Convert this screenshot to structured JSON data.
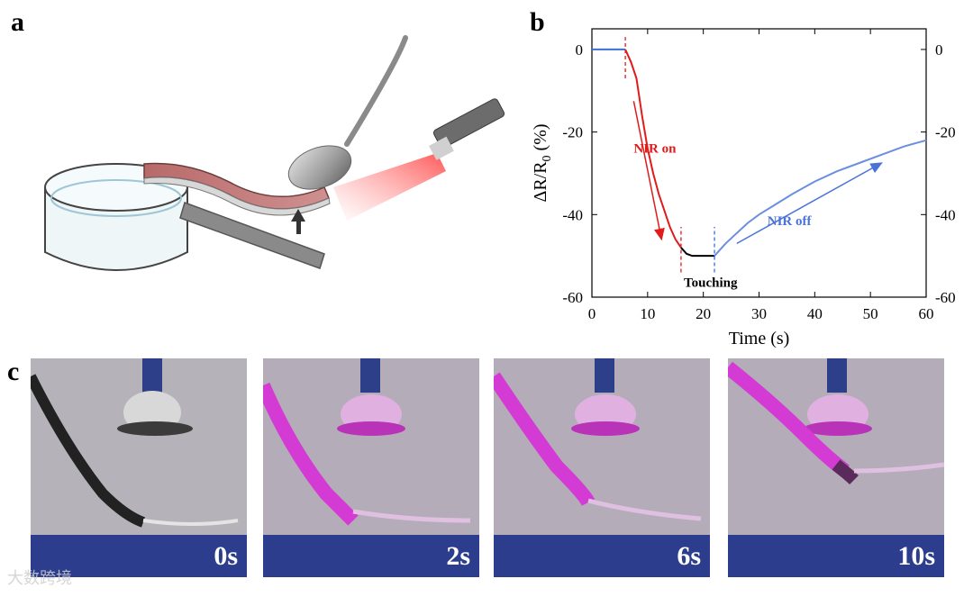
{
  "panels": {
    "a": "a",
    "b": "b",
    "c": "c"
  },
  "chart_data": {
    "type": "line",
    "xlabel": "Time (s)",
    "ylabel_main": "ΔR/R",
    "ylabel_sub": "0",
    "ylabel_unit": " (%)",
    "xlim": [
      0,
      60
    ],
    "ylim": [
      -60,
      5
    ],
    "xticks": [
      0,
      10,
      20,
      30,
      40,
      50,
      60
    ],
    "yticks": [
      0,
      -20,
      -40,
      -60
    ],
    "grid": false,
    "series": [
      {
        "color": "#3b6fd6",
        "x": [
          0,
          6
        ],
        "y": [
          0,
          0
        ]
      },
      {
        "color": "#e01b1b",
        "x": [
          6,
          7,
          8,
          9,
          10,
          11,
          12,
          13,
          14,
          15,
          16
        ],
        "y": [
          0,
          -3,
          -7,
          -16,
          -24,
          -30,
          -35,
          -39,
          -43,
          -46,
          -48
        ]
      },
      {
        "color": "#000000",
        "x": [
          16,
          17,
          18,
          19,
          20,
          21,
          22
        ],
        "y": [
          -48,
          -49.5,
          -50,
          -50,
          -50,
          -50,
          -50
        ]
      },
      {
        "color": "#6a8fe0",
        "x": [
          22,
          24,
          26,
          28,
          30,
          33,
          36,
          40,
          44,
          48,
          52,
          56,
          60
        ],
        "y": [
          -50,
          -47,
          -44.5,
          -42,
          -40,
          -37.5,
          -35,
          -32,
          -29.5,
          -27.5,
          -25.5,
          -23.5,
          -22
        ]
      }
    ],
    "vlines": [
      {
        "x": 6,
        "y": [
          -7,
          3
        ],
        "color": "#e01b1b"
      },
      {
        "x": 16,
        "y": [
          -54,
          -43
        ],
        "color": "#e01b1b"
      },
      {
        "x": 22,
        "y": [
          -54,
          -43
        ],
        "color": "#3b6fd6"
      }
    ],
    "annotations": [
      {
        "text": "NIR on",
        "x": 7.5,
        "y": -25,
        "color": "#e01b1b"
      },
      {
        "text": "NIR off",
        "x": 31.5,
        "y": -42.5,
        "color": "#4a72d8"
      },
      {
        "text": "Touching",
        "x": 16.5,
        "y": -57.5,
        "color": "#000000"
      }
    ],
    "arrows": [
      {
        "from": [
          7.5,
          -12.5
        ],
        "to": [
          12.5,
          -46
        ],
        "color": "#e01b1b"
      },
      {
        "from": [
          26,
          -47
        ],
        "to": [
          52,
          -27.5
        ],
        "color": "#4a72d8"
      }
    ]
  },
  "photos": [
    {
      "label": "0s"
    },
    {
      "label": "2s"
    },
    {
      "label": "6s"
    },
    {
      "label": "10s"
    }
  ],
  "watermark": "大数跨境"
}
